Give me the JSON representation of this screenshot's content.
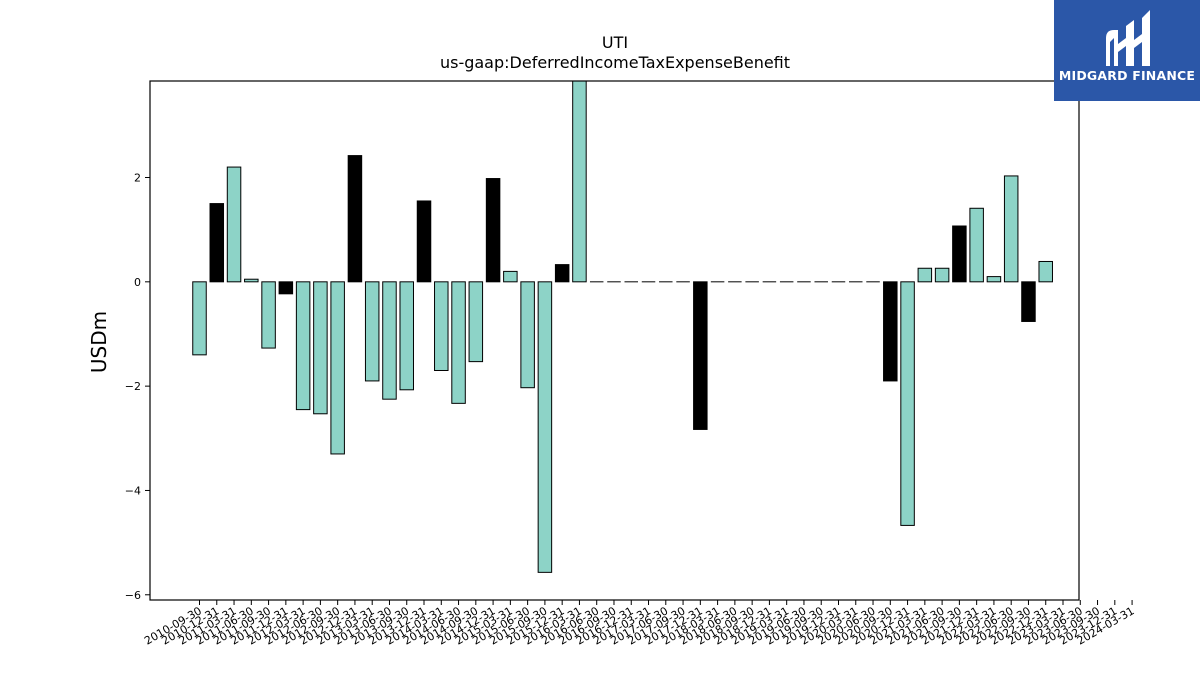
{
  "brand": {
    "name": "MIDGARD FINANCE",
    "color": "#2b57a8"
  },
  "chart_data": {
    "type": "bar",
    "title": "UTI",
    "subtitle": "us-gaap:DeferredIncomeTaxExpenseBenefit",
    "xlabel": "",
    "ylabel": "USDm",
    "ylim": [
      -6.1,
      3.85
    ],
    "yticks": [
      2,
      0,
      -2,
      -4,
      -6
    ],
    "ytick_labels": [
      "2",
      "0",
      "−2",
      "−4",
      "−6"
    ],
    "grid": false,
    "legend": "none",
    "colors": {
      "teal": "#8dd3c7",
      "black": "#000000",
      "edge": "#000000"
    },
    "categories": [
      "2010-09-30",
      "2010-12-31",
      "2011-03-31",
      "2011-06-30",
      "2011-09-30",
      "2011-12-31",
      "2012-03-31",
      "2012-06-30",
      "2012-09-30",
      "2012-12-31",
      "2013-03-31",
      "2013-06-30",
      "2013-09-30",
      "2013-12-31",
      "2014-03-31",
      "2014-06-30",
      "2014-09-30",
      "2014-12-31",
      "2015-03-31",
      "2015-06-30",
      "2015-09-30",
      "2015-12-31",
      "2016-03-31",
      "2016-06-30",
      "2016-09-30",
      "2016-12-31",
      "2017-03-31",
      "2017-06-30",
      "2017-09-30",
      "2017-12-31",
      "2018-03-31",
      "2018-06-30",
      "2018-09-30",
      "2018-12-31",
      "2019-03-31",
      "2019-06-30",
      "2019-09-30",
      "2019-12-31",
      "2020-03-31",
      "2020-06-30",
      "2020-09-30",
      "2020-12-31",
      "2021-03-31",
      "2021-06-30",
      "2021-09-30",
      "2021-12-31",
      "2022-03-31",
      "2022-06-30",
      "2022-09-30",
      "2022-12-31",
      "2023-03-31",
      "2023-06-30",
      "2023-09-30",
      "2023-12-31",
      "2024-03-31"
    ],
    "tick_labels_shown": [
      "2010-09-30",
      "2010-12-31",
      "2011-03-31",
      "2011-06-30",
      "2011-09-30",
      "2011-12-31",
      "2012-03-31",
      "2012-06-30",
      "2012-09-30",
      "2012-12-31",
      "2013-03-31",
      "2013-06-30",
      "2013-09-30",
      "2013-12-31",
      "2014-03-31",
      "2014-06-30",
      "2014-09-30",
      "2014-12-31",
      "2015-03-31",
      "2015-06-30",
      "2015-09-30",
      "2015-12-31",
      "2016-03-31",
      "2016-06-30",
      "2016-09-30",
      "2016-12-31",
      "2017-03-31",
      "2017-06-30",
      "2017-09-30",
      "2017-12-31",
      "2018-03-31",
      "2018-06-30",
      "2018-09-30",
      "2018-12-31",
      "2019-03-31",
      "2019-06-30",
      "2019-09-30",
      "2019-12-31",
      "2020-03-31",
      "2020-06-30",
      "2020-09-30",
      "2020-12-31",
      "2021-03-31",
      "2021-06-30",
      "2021-09-30",
      "2021-12-31",
      "2022-03-31",
      "2022-06-30",
      "2022-09-30",
      "2022-12-31",
      "2023-03-31",
      "2023-06-30",
      "2023-09-30",
      "2023-12-31",
      "2024-03-31"
    ],
    "bars": [
      {
        "x": 0,
        "value": -1.4,
        "color": "teal"
      },
      {
        "x": 1,
        "value": 1.5,
        "color": "black"
      },
      {
        "x": 2,
        "value": 2.2,
        "color": "teal"
      },
      {
        "x": 3,
        "value": 0.05,
        "color": "teal"
      },
      {
        "x": 4,
        "value": -1.27,
        "color": "teal"
      },
      {
        "x": 5,
        "value": -0.23,
        "color": "black"
      },
      {
        "x": 6,
        "value": -2.45,
        "color": "teal"
      },
      {
        "x": 7,
        "value": -2.53,
        "color": "teal"
      },
      {
        "x": 8,
        "value": -3.3,
        "color": "teal"
      },
      {
        "x": 9,
        "value": 2.42,
        "color": "black"
      },
      {
        "x": 10,
        "value": -1.9,
        "color": "teal"
      },
      {
        "x": 11,
        "value": -2.25,
        "color": "teal"
      },
      {
        "x": 12,
        "value": -2.07,
        "color": "teal"
      },
      {
        "x": 13,
        "value": 1.55,
        "color": "black"
      },
      {
        "x": 14,
        "value": -1.7,
        "color": "teal"
      },
      {
        "x": 15,
        "value": -2.33,
        "color": "teal"
      },
      {
        "x": 16,
        "value": -1.53,
        "color": "teal"
      },
      {
        "x": 17,
        "value": 1.98,
        "color": "black"
      },
      {
        "x": 18,
        "value": 0.2,
        "color": "teal"
      },
      {
        "x": 19,
        "value": -2.03,
        "color": "teal"
      },
      {
        "x": 20,
        "value": -5.57,
        "color": "teal"
      },
      {
        "x": 21,
        "value": 0.33,
        "color": "black"
      },
      {
        "x": 22,
        "value": 3.85,
        "color": "teal"
      },
      {
        "x": 23,
        "value": 0,
        "color": "teal"
      },
      {
        "x": 24,
        "value": 0,
        "color": "teal"
      },
      {
        "x": 25,
        "value": 0,
        "color": "teal"
      },
      {
        "x": 26,
        "value": 0,
        "color": "teal"
      },
      {
        "x": 27,
        "value": 0,
        "color": "teal"
      },
      {
        "x": 28,
        "value": 0,
        "color": "teal"
      },
      {
        "x": 29,
        "value": -2.83,
        "color": "black"
      },
      {
        "x": 30,
        "value": 0,
        "color": "teal"
      },
      {
        "x": 31,
        "value": 0,
        "color": "teal"
      },
      {
        "x": 32,
        "value": 0,
        "color": "teal"
      },
      {
        "x": 33,
        "value": 0,
        "color": "teal"
      },
      {
        "x": 34,
        "value": 0,
        "color": "teal"
      },
      {
        "x": 35,
        "value": 0,
        "color": "teal"
      },
      {
        "x": 36,
        "value": 0,
        "color": "teal"
      },
      {
        "x": 37,
        "value": 0,
        "color": "teal"
      },
      {
        "x": 38,
        "value": 0,
        "color": "teal"
      },
      {
        "x": 39,
        "value": 0,
        "color": "teal"
      },
      {
        "x": 40,
        "value": -1.9,
        "color": "black"
      },
      {
        "x": 41,
        "value": -4.67,
        "color": "teal"
      },
      {
        "x": 42,
        "value": 0.26,
        "color": "teal"
      },
      {
        "x": 43,
        "value": 0.26,
        "color": "teal"
      },
      {
        "x": 44,
        "value": 1.07,
        "color": "black"
      },
      {
        "x": 45,
        "value": 1.41,
        "color": "teal"
      },
      {
        "x": 46,
        "value": 0.1,
        "color": "teal"
      },
      {
        "x": 47,
        "value": 2.03,
        "color": "teal"
      },
      {
        "x": 48,
        "value": -0.76,
        "color": "black"
      },
      {
        "x": 49,
        "value": 0.39,
        "color": "teal"
      }
    ]
  }
}
